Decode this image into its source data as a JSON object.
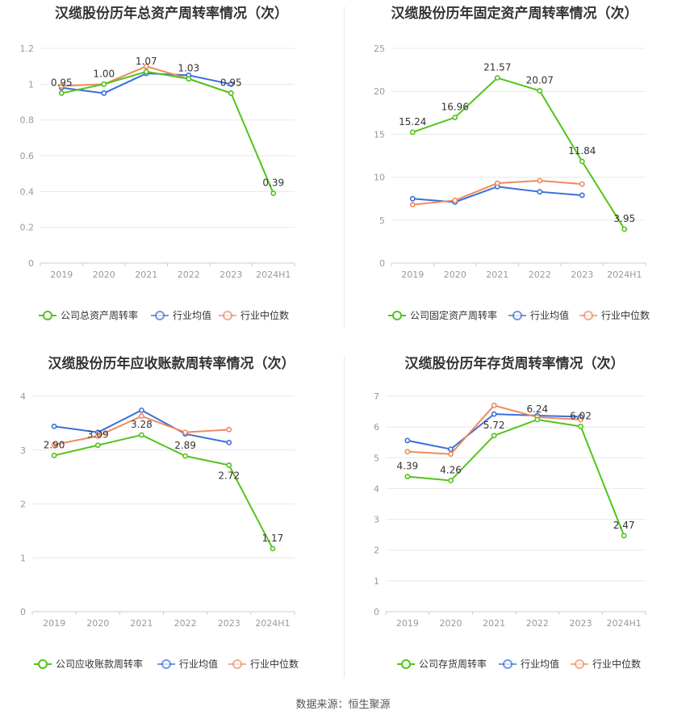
{
  "source": "数据来源：恒生聚源",
  "colors": {
    "company": "#52c41a",
    "avg": "#3b6fd8",
    "median": "#f08a5d",
    "grid": "#e8e8e8",
    "axis": "#999999"
  },
  "chart_data": [
    {
      "type": "line",
      "title": "汉缆股份历年总资产周转率情况（次）",
      "categories": [
        "2019",
        "2020",
        "2021",
        "2022",
        "2023",
        "2024H1"
      ],
      "ylim": [
        0,
        1.2
      ],
      "yticks": [
        "0",
        "0.2",
        "0.4",
        "0.6",
        "0.8",
        "1",
        "1.2"
      ],
      "series": [
        {
          "name": "公司总资产周转率",
          "values": [
            0.95,
            1.0,
            1.07,
            1.03,
            0.95,
            0.39
          ],
          "labels": [
            "0.95",
            "1.00",
            "1.07",
            "1.03",
            "0.95",
            "0.39"
          ]
        },
        {
          "name": "行业均值",
          "values": [
            0.98,
            0.95,
            1.06,
            1.05,
            1.0,
            null
          ]
        },
        {
          "name": "行业中位数",
          "values": [
            0.99,
            1.0,
            1.1,
            1.03,
            0.95,
            null
          ]
        }
      ]
    },
    {
      "type": "line",
      "title": "汉缆股份历年固定资产周转率情况（次）",
      "categories": [
        "2019",
        "2020",
        "2021",
        "2022",
        "2023",
        "2024H1"
      ],
      "ylim": [
        0,
        25
      ],
      "yticks": [
        "0",
        "5",
        "10",
        "15",
        "20",
        "25"
      ],
      "series": [
        {
          "name": "公司固定资产周转率",
          "values": [
            15.24,
            16.96,
            21.57,
            20.07,
            11.84,
            3.95
          ],
          "labels": [
            "15.24",
            "16.96",
            "21.57",
            "20.07",
            "11.84",
            "3.95"
          ]
        },
        {
          "name": "行业均值",
          "values": [
            7.5,
            7.1,
            8.9,
            8.3,
            7.9,
            null
          ]
        },
        {
          "name": "行业中位数",
          "values": [
            6.8,
            7.3,
            9.3,
            9.6,
            9.2,
            null
          ]
        }
      ]
    },
    {
      "type": "line",
      "title": "汉缆股份历年应收账款周转率情况（次）",
      "categories": [
        "2019",
        "2020",
        "2021",
        "2022",
        "2023",
        "2024H1"
      ],
      "ylim": [
        0,
        4
      ],
      "yticks": [
        "0",
        "1",
        "2",
        "3",
        "4"
      ],
      "series": [
        {
          "name": "公司应收账款周转率",
          "values": [
            2.9,
            3.09,
            3.28,
            2.89,
            2.72,
            1.17
          ],
          "labels": [
            "2.90",
            "3.09",
            "3.28",
            "2.89",
            "2.72",
            "1.17"
          ]
        },
        {
          "name": "行业均值",
          "values": [
            3.44,
            3.33,
            3.74,
            3.3,
            3.14,
            null
          ]
        },
        {
          "name": "行业中位数",
          "values": [
            3.1,
            3.26,
            3.63,
            3.33,
            3.38,
            null
          ]
        }
      ]
    },
    {
      "type": "line",
      "title": "汉缆股份历年存货周转率情况（次）",
      "categories": [
        "2019",
        "2020",
        "2021",
        "2022",
        "2023",
        "2024H1"
      ],
      "ylim": [
        0,
        7
      ],
      "yticks": [
        "0",
        "1",
        "2",
        "3",
        "4",
        "5",
        "6",
        "7"
      ],
      "series": [
        {
          "name": "公司存货周转率",
          "values": [
            4.39,
            4.26,
            5.72,
            6.24,
            6.02,
            2.47
          ],
          "labels": [
            "4.39",
            "4.26",
            "5.72",
            "6.24",
            "6.02",
            "2.47"
          ]
        },
        {
          "name": "行业均值",
          "values": [
            5.56,
            5.28,
            6.42,
            6.37,
            6.33,
            null
          ]
        },
        {
          "name": "行业中位数",
          "values": [
            5.2,
            5.12,
            6.7,
            6.32,
            6.24,
            null
          ]
        }
      ]
    }
  ]
}
